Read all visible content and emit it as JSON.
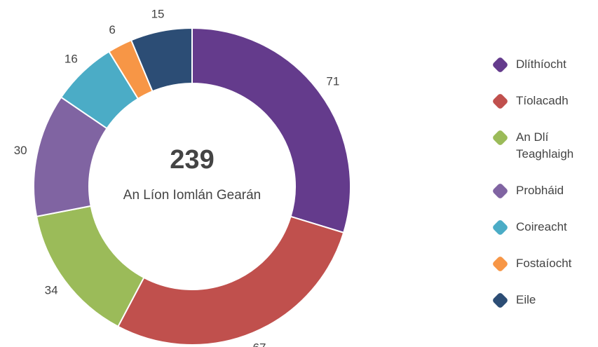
{
  "chart_data": {
    "type": "donut",
    "total": 239,
    "center_label": "An Líon Iomlán Gearán",
    "series": [
      {
        "name": "Dlíthíocht",
        "color": "#643b8c",
        "value": 71
      },
      {
        "name": "Tíolacadh",
        "color": "#c0504d",
        "value": 67
      },
      {
        "name": "An Dlí Teaghlaigh",
        "color": "#9bbb59",
        "value": 34
      },
      {
        "name": "Probháid",
        "color": "#8064a2",
        "value": 30
      },
      {
        "name": "Coireacht",
        "color": "#4bacc6",
        "value": 16
      },
      {
        "name": "Fostaíocht",
        "color": "#f79646",
        "value": 6
      },
      {
        "name": "Eile",
        "color": "#2c4d75",
        "value": 15
      }
    ],
    "legend": "right"
  }
}
